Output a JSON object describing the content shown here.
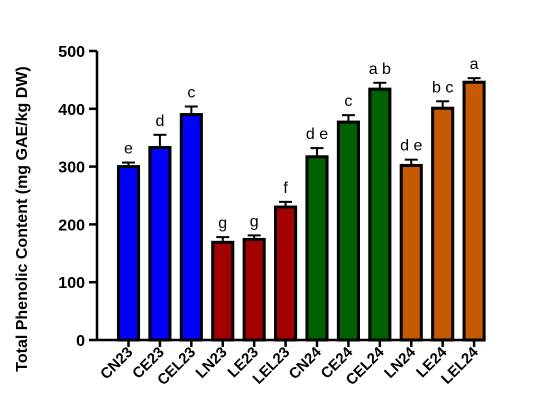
{
  "chart_data": {
    "type": "bar",
    "title": "",
    "xlabel": "",
    "ylabel": "Total Phenolic Content (mg GAE/kg DW)",
    "ylim": [
      0,
      500
    ],
    "yticks": [
      0,
      100,
      200,
      300,
      400,
      500
    ],
    "grid": false,
    "categories": [
      "CN23",
      "CE23",
      "CEL23",
      "LN23",
      "LE23",
      "LEL23",
      "CN24",
      "CE24",
      "CEL24",
      "LN24",
      "LE24",
      "LEL24"
    ],
    "values": [
      300,
      333,
      390,
      169,
      174,
      230,
      317,
      377,
      434,
      302,
      401,
      446
    ],
    "errors": [
      7,
      22,
      14,
      9,
      7,
      9,
      15,
      12,
      11,
      10,
      12,
      7
    ],
    "significance_letters": [
      "e",
      "d",
      "c",
      "g",
      "g",
      "f",
      "d e",
      "c",
      "a b",
      "d e",
      "b c",
      "a"
    ],
    "colors": [
      "#0000ff",
      "#0000ff",
      "#0000ff",
      "#a30000",
      "#a30000",
      "#a30000",
      "#006100",
      "#006100",
      "#006100",
      "#c55a00",
      "#c55a00",
      "#c55a00"
    ]
  }
}
